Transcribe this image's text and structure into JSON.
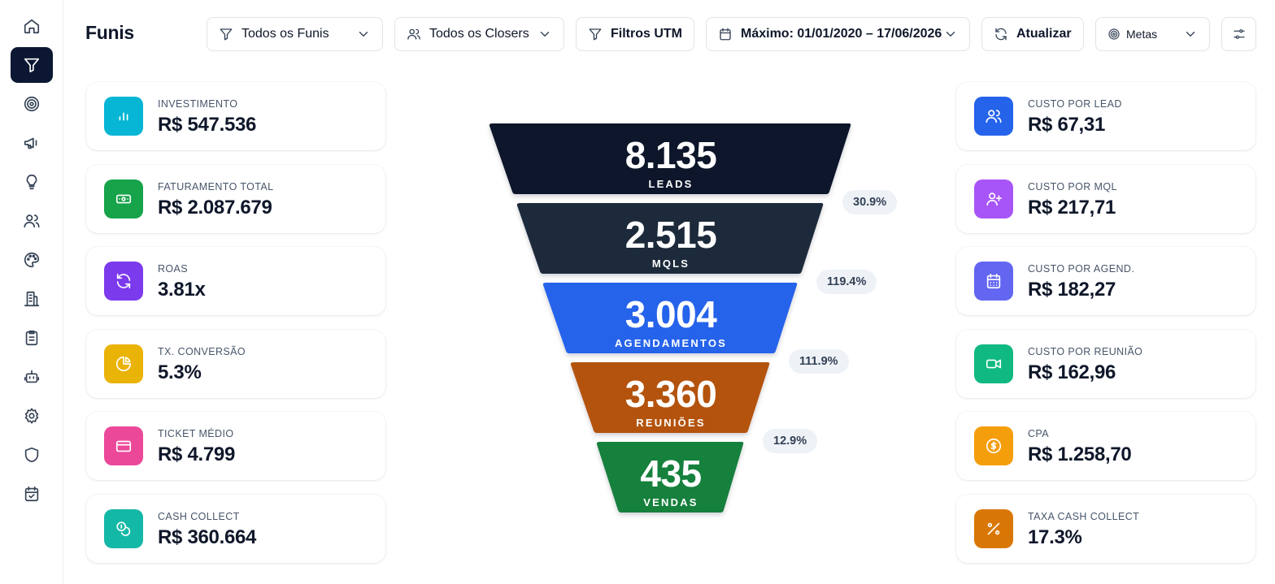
{
  "header": {
    "title": "Funis",
    "funnels_filter": "Todos os Funis",
    "closers_filter": "Todos os Closers",
    "utm_filter": "Filtros UTM",
    "date_range": "Máximo: 01/01/2020 – 17/06/2026",
    "refresh": "Atualizar",
    "goals": "Metas"
  },
  "sidebar": {
    "items": [
      {
        "icon": "home-icon"
      },
      {
        "icon": "funnel-icon",
        "active": true
      },
      {
        "icon": "target-icon"
      },
      {
        "icon": "megaphone-icon"
      },
      {
        "icon": "lightbulb-icon"
      },
      {
        "icon": "users-icon"
      },
      {
        "icon": "palette-icon"
      },
      {
        "icon": "building-icon"
      },
      {
        "icon": "clipboard-icon"
      },
      {
        "icon": "robot-icon"
      },
      {
        "icon": "gear-icon"
      },
      {
        "icon": "shield-icon"
      },
      {
        "icon": "calendar-check-icon"
      }
    ]
  },
  "left_kpis": [
    {
      "label": "INVESTIMENTO",
      "value": "R$ 547.536",
      "color": "#06b6d4",
      "icon": "bar-chart-icon"
    },
    {
      "label": "FATURAMENTO TOTAL",
      "value": "R$ 2.087.679",
      "color": "#16a34a",
      "icon": "banknote-icon"
    },
    {
      "label": "ROAS",
      "value": "3.81x",
      "color": "#7c3aed",
      "icon": "refresh-icon"
    },
    {
      "label": "TX. CONVERSÃO",
      "value": "5.3%",
      "color": "#eab308",
      "icon": "pie-chart-icon"
    },
    {
      "label": "TICKET MÉDIO",
      "value": "R$ 4.799",
      "color": "#ec4899",
      "icon": "credit-card-icon"
    },
    {
      "label": "CASH COLLECT",
      "value": "R$ 360.664",
      "color": "#14b8a6",
      "icon": "coins-icon"
    }
  ],
  "right_kpis": [
    {
      "label": "CUSTO POR LEAD",
      "value": "R$ 67,31",
      "color": "#2563eb",
      "icon": "users-icon"
    },
    {
      "label": "CUSTO POR MQL",
      "value": "R$ 217,71",
      "color": "#a855f7",
      "icon": "user-plus-icon"
    },
    {
      "label": "CUSTO POR AGEND.",
      "value": "R$ 182,27",
      "color": "#6366f1",
      "icon": "calendar-icon"
    },
    {
      "label": "CUSTO POR REUNIÃO",
      "value": "R$ 162,96",
      "color": "#10b981",
      "icon": "video-icon"
    },
    {
      "label": "CPA",
      "value": "R$ 1.258,70",
      "color": "#f59e0b",
      "icon": "dollar-circle-icon"
    },
    {
      "label": "TAXA CASH COLLECT",
      "value": "17.3%",
      "color": "#d97706",
      "icon": "percent-icon"
    }
  ],
  "funnel": {
    "stages": [
      {
        "value": "8.135",
        "label": "LEADS",
        "color": "#0f172a"
      },
      {
        "value": "2.515",
        "label": "MQLS",
        "color": "#1e293b"
      },
      {
        "value": "3.004",
        "label": "AGENDAMENTOS",
        "color": "#2563eb"
      },
      {
        "value": "3.360",
        "label": "REUNIÕES",
        "color": "#b45309"
      },
      {
        "value": "435",
        "label": "VENDAS",
        "color": "#15803d"
      }
    ],
    "conversions": [
      "30.9%",
      "119.4%",
      "111.9%",
      "12.9%"
    ]
  }
}
